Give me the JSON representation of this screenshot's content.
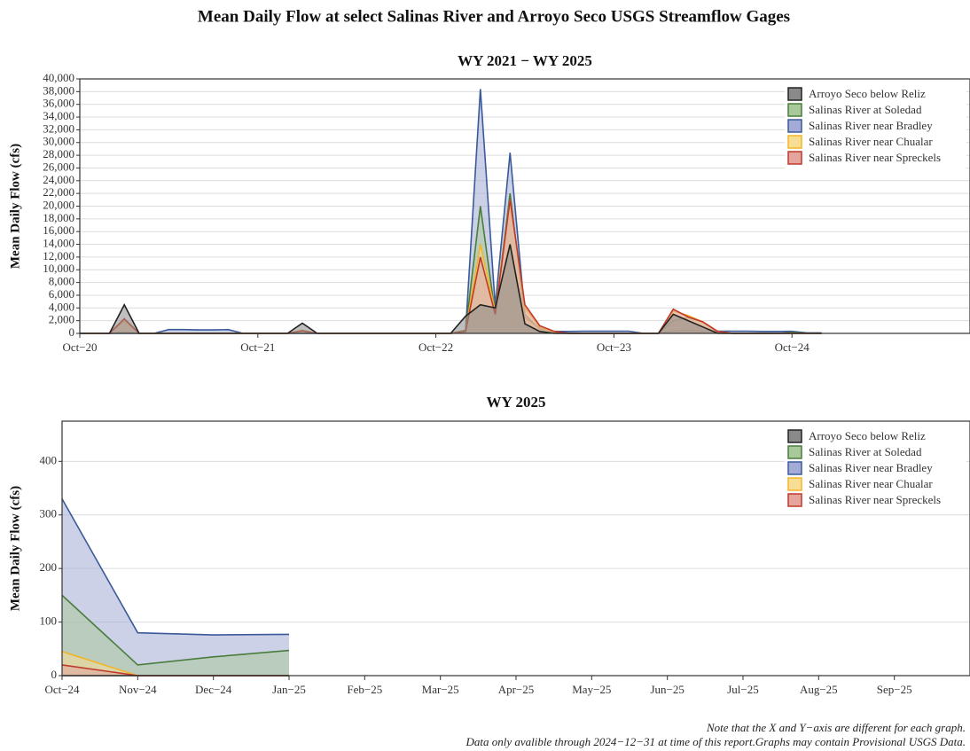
{
  "title": "Mean Daily Flow at select Salinas River and Arroyo Seco USGS Streamflow Gages",
  "notes": [
    "Note that the X and Y−axis are different for each graph.",
    "Data only avalible through 2024−12−31 at time of this report.Graphs may contain Provisional USGS Data."
  ],
  "chart_data": [
    {
      "type": "area",
      "title": "WY 2021 − WY 2025",
      "y_label": "Mean Daily Flow (cfs)",
      "grid": true,
      "legend": "top-right",
      "x": [
        "2020-10",
        "2020-11",
        "2020-12",
        "2021-01",
        "2021-02",
        "2021-03",
        "2021-04",
        "2021-05",
        "2021-06",
        "2021-07",
        "2021-08",
        "2021-09",
        "2021-10",
        "2021-11",
        "2021-12",
        "2022-01",
        "2022-02",
        "2022-03",
        "2022-04",
        "2022-05",
        "2022-06",
        "2022-07",
        "2022-08",
        "2022-09",
        "2022-10",
        "2022-11",
        "2022-12",
        "2023-01",
        "2023-02",
        "2023-03",
        "2023-04",
        "2023-05",
        "2023-06",
        "2023-07",
        "2023-08",
        "2023-09",
        "2023-10",
        "2023-11",
        "2023-12",
        "2024-01",
        "2024-02",
        "2024-03",
        "2024-04",
        "2024-05",
        "2024-06",
        "2024-07",
        "2024-08",
        "2024-09",
        "2024-10",
        "2024-11",
        "2024-12"
      ],
      "xlim": [
        "2020-10",
        "2025-10"
      ],
      "xticks": [
        {
          "value": "2020-10",
          "label": "Oct−20"
        },
        {
          "value": "2021-10",
          "label": "Oct−21"
        },
        {
          "value": "2022-10",
          "label": "Oct−22"
        },
        {
          "value": "2023-10",
          "label": "Oct−23"
        },
        {
          "value": "2024-10",
          "label": "Oct−24"
        }
      ],
      "ylim": [
        0,
        40000
      ],
      "yticks": [
        0,
        {
          "value": 2000,
          "label": "2,000"
        },
        {
          "value": 4000,
          "label": "4,000"
        },
        {
          "value": 6000,
          "label": "6,000"
        },
        {
          "value": 8000,
          "label": "8,000"
        },
        {
          "value": 10000,
          "label": "10,000"
        },
        {
          "value": 12000,
          "label": "12,000"
        },
        {
          "value": 14000,
          "label": "14,000"
        },
        {
          "value": 16000,
          "label": "16,000"
        },
        {
          "value": 18000,
          "label": "18,000"
        },
        {
          "value": 20000,
          "label": "20,000"
        },
        {
          "value": 22000,
          "label": "22,000"
        },
        {
          "value": 24000,
          "label": "24,000"
        },
        {
          "value": 26000,
          "label": "26,000"
        },
        {
          "value": 28000,
          "label": "28,000"
        },
        {
          "value": 30000,
          "label": "30,000"
        },
        {
          "value": 32000,
          "label": "32,000"
        },
        {
          "value": 34000,
          "label": "34,000"
        },
        {
          "value": 36000,
          "label": "36,000"
        },
        {
          "value": 38000,
          "label": "38,000"
        },
        {
          "value": 40000,
          "label": "40,000"
        }
      ],
      "series": [
        {
          "name": "Arroyo Seco below Reliz",
          "color": "#222222",
          "fill": "#8a8a8a",
          "values": [
            0,
            0,
            0,
            4500,
            0,
            0,
            0,
            0,
            0,
            0,
            0,
            0,
            0,
            0,
            0,
            1600,
            0,
            0,
            0,
            0,
            0,
            0,
            0,
            0,
            0,
            0,
            2700,
            4500,
            4000,
            14000,
            1500,
            300,
            0,
            0,
            0,
            0,
            0,
            0,
            0,
            0,
            3000,
            2000,
            1000,
            0,
            0,
            0,
            0,
            0,
            0,
            0,
            0
          ]
        },
        {
          "name": "Salinas River at Soledad",
          "color": "#4a7d3c",
          "fill": "#a9c99b",
          "values": [
            0,
            0,
            0,
            200,
            0,
            0,
            0,
            0,
            0,
            0,
            0,
            0,
            0,
            0,
            0,
            300,
            0,
            0,
            0,
            0,
            0,
            0,
            0,
            0,
            0,
            0,
            500,
            20000,
            3000,
            22000,
            2500,
            800,
            100,
            0,
            0,
            0,
            0,
            0,
            0,
            0,
            2000,
            2500,
            1800,
            200,
            0,
            0,
            0,
            0,
            150,
            20,
            35
          ]
        },
        {
          "name": "Salinas River near Bradley",
          "color": "#3a5a9a",
          "fill": "#a3abd6",
          "values": [
            0,
            0,
            0,
            0,
            0,
            0,
            600,
            600,
            550,
            550,
            600,
            0,
            0,
            0,
            0,
            0,
            0,
            0,
            0,
            0,
            0,
            0,
            0,
            0,
            0,
            0,
            300,
            38400,
            4300,
            28400,
            3000,
            600,
            300,
            300,
            350,
            350,
            350,
            350,
            0,
            0,
            400,
            500,
            400,
            350,
            350,
            350,
            300,
            300,
            330,
            80,
            76
          ]
        },
        {
          "name": "Salinas River near Chualar",
          "color": "#f2b526",
          "fill": "#f8dd94",
          "values": [
            0,
            0,
            0,
            2000,
            0,
            0,
            0,
            0,
            0,
            0,
            0,
            0,
            0,
            0,
            0,
            500,
            0,
            0,
            0,
            0,
            0,
            0,
            0,
            0,
            0,
            0,
            400,
            14000,
            3500,
            21000,
            4000,
            1000,
            200,
            0,
            0,
            0,
            0,
            0,
            0,
            0,
            3500,
            2800,
            1800,
            300,
            0,
            0,
            0,
            0,
            45,
            0,
            0
          ]
        },
        {
          "name": "Salinas River near Spreckels",
          "color": "#c0392b",
          "fill": "#e3a59c",
          "values": [
            0,
            0,
            0,
            2300,
            0,
            0,
            0,
            0,
            0,
            0,
            0,
            0,
            0,
            0,
            0,
            400,
            0,
            0,
            0,
            0,
            0,
            0,
            0,
            0,
            0,
            0,
            300,
            12000,
            3000,
            21000,
            4500,
            1200,
            300,
            0,
            0,
            0,
            0,
            0,
            0,
            0,
            3800,
            2600,
            1800,
            300,
            0,
            0,
            0,
            0,
            20,
            0,
            0
          ]
        }
      ]
    },
    {
      "type": "area",
      "title": "WY 2025",
      "y_label": "Mean Daily Flow (cfs)",
      "grid": true,
      "legend": "top-right",
      "x": [
        "2024-10",
        "2024-11",
        "2024-12",
        "2025-01"
      ],
      "xlim": [
        "2024-10",
        "2025-10"
      ],
      "xticks": [
        {
          "value": "2024-10",
          "label": "Oct−24"
        },
        {
          "value": "2024-11",
          "label": "Nov−24"
        },
        {
          "value": "2024-12",
          "label": "Dec−24"
        },
        {
          "value": "2025-01",
          "label": "Jan−25"
        },
        {
          "value": "2025-02",
          "label": "Feb−25"
        },
        {
          "value": "2025-03",
          "label": "Mar−25"
        },
        {
          "value": "2025-04",
          "label": "Apr−25"
        },
        {
          "value": "2025-05",
          "label": "May−25"
        },
        {
          "value": "2025-06",
          "label": "Jun−25"
        },
        {
          "value": "2025-07",
          "label": "Jul−25"
        },
        {
          "value": "2025-08",
          "label": "Aug−25"
        },
        {
          "value": "2025-09",
          "label": "Sep−25"
        }
      ],
      "ylim": [
        0,
        475
      ],
      "yticks": [
        0,
        100,
        200,
        300,
        400
      ],
      "series": [
        {
          "name": "Arroyo Seco below Reliz",
          "color": "#222222",
          "fill": "#8a8a8a",
          "values": [
            0,
            0,
            0,
            0
          ]
        },
        {
          "name": "Salinas River at Soledad",
          "color": "#4a7d3c",
          "fill": "#a9c99b",
          "values": [
            150,
            20,
            35,
            47
          ]
        },
        {
          "name": "Salinas River near Bradley",
          "color": "#3a5a9a",
          "fill": "#a3abd6",
          "values": [
            330,
            80,
            76,
            77
          ]
        },
        {
          "name": "Salinas River near Chualar",
          "color": "#f2b526",
          "fill": "#f8dd94",
          "values": [
            45,
            0,
            0,
            0
          ]
        },
        {
          "name": "Salinas River near Spreckels",
          "color": "#c0392b",
          "fill": "#e3a59c",
          "values": [
            20,
            0,
            0,
            0
          ]
        }
      ]
    }
  ]
}
